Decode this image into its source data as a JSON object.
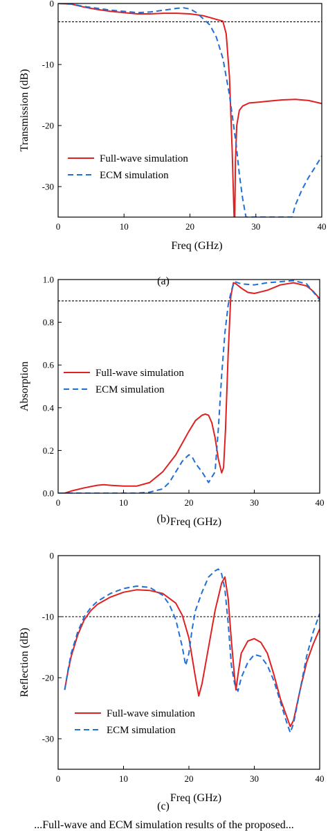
{
  "chart_data": [
    {
      "type": "line",
      "panel": "(a)",
      "xlabel": "Freq (GHz)",
      "ylabel": "Transmission (dB)",
      "xlim": [
        0,
        40
      ],
      "ylim": [
        -35,
        0
      ],
      "xticks": [
        "0",
        "10",
        "20",
        "30",
        "40"
      ],
      "yticks": [
        "0",
        "-10",
        "-20",
        "-30"
      ],
      "reference_line": -3,
      "legend": {
        "position": "bottom-left"
      },
      "series": [
        {
          "name": "Full-wave simulation",
          "color": "#e02020",
          "style": "solid",
          "x": [
            0,
            2,
            4,
            6,
            8,
            10,
            12,
            14,
            16,
            18,
            20,
            22,
            23,
            24,
            25,
            25.5,
            26,
            26.4,
            26.7,
            26.8,
            26.9,
            27.1,
            27.5,
            28,
            29,
            30,
            32,
            34,
            36,
            38,
            40
          ],
          "y": [
            0,
            -0.1,
            -0.6,
            -1.0,
            -1.3,
            -1.5,
            -1.7,
            -1.7,
            -1.6,
            -1.6,
            -1.7,
            -2.0,
            -2.3,
            -2.6,
            -2.9,
            -5,
            -12,
            -24,
            -35,
            -35,
            -26,
            -20,
            -17.5,
            -16.8,
            -16.3,
            -16.2,
            -16.0,
            -15.8,
            -15.7,
            -15.9,
            -16.4
          ]
        },
        {
          "name": "ECM simulation",
          "color": "#1f6fd6",
          "style": "dashed",
          "x": [
            0,
            2,
            4,
            6,
            8,
            10,
            12,
            14,
            16,
            18,
            19,
            20,
            21,
            22,
            23,
            24,
            25,
            26,
            26.5,
            27,
            27.5,
            28,
            28.5,
            35.5,
            36,
            37,
            38,
            39,
            40
          ],
          "y": [
            0,
            -0.1,
            -0.5,
            -0.8,
            -1.1,
            -1.3,
            -1.5,
            -1.4,
            -1.1,
            -0.8,
            -0.7,
            -0.9,
            -1.5,
            -2.5,
            -3.5,
            -5.5,
            -9,
            -15,
            -19,
            -23,
            -28,
            -32,
            -35,
            -35,
            -33,
            -30.5,
            -28.5,
            -26.8,
            -25
          ]
        }
      ]
    },
    {
      "type": "line",
      "panel": "(b)",
      "xlabel": "Freq (GHz)",
      "ylabel": "Absorption",
      "xlim": [
        0,
        40
      ],
      "ylim": [
        0,
        1.0
      ],
      "xticks": [
        "0",
        "10",
        "20",
        "30",
        "40"
      ],
      "yticks": [
        "0.0",
        "0.2",
        "0.4",
        "0.6",
        "0.8",
        "1.0"
      ],
      "reference_line": 0.9,
      "legend": {
        "position": "middle-left"
      },
      "series": [
        {
          "name": "Full-wave simulation",
          "color": "#e02020",
          "style": "solid",
          "x": [
            0,
            1,
            2,
            4,
            6,
            7,
            8,
            10,
            12,
            14,
            16,
            18,
            20,
            21,
            22,
            22.5,
            23,
            23.5,
            24,
            24.5,
            25,
            25.3,
            25.6,
            26,
            26.4,
            26.8,
            27.2,
            28,
            29,
            30,
            32,
            34,
            36,
            38,
            39,
            40
          ],
          "y": [
            0,
            0,
            0.01,
            0.025,
            0.037,
            0.04,
            0.037,
            0.033,
            0.033,
            0.05,
            0.1,
            0.18,
            0.29,
            0.34,
            0.365,
            0.37,
            0.365,
            0.33,
            0.26,
            0.16,
            0.095,
            0.12,
            0.3,
            0.65,
            0.92,
            0.985,
            0.98,
            0.96,
            0.94,
            0.935,
            0.95,
            0.975,
            0.985,
            0.97,
            0.945,
            0.91
          ]
        },
        {
          "name": "ECM simulation",
          "color": "#1f6fd6",
          "style": "dashed",
          "x": [
            0,
            4,
            8,
            10,
            12,
            14,
            16,
            17,
            18,
            19,
            20,
            20.5,
            21,
            22,
            23,
            24,
            24.5,
            25,
            25.5,
            26,
            26.5,
            27,
            28,
            30,
            32,
            34,
            36,
            38,
            40
          ],
          "y": [
            0,
            0,
            0,
            0,
            0,
            0.005,
            0.02,
            0.05,
            0.1,
            0.15,
            0.18,
            0.17,
            0.14,
            0.1,
            0.05,
            0.1,
            0.3,
            0.55,
            0.75,
            0.88,
            0.95,
            0.99,
            0.98,
            0.975,
            0.985,
            0.99,
            0.995,
            0.98,
            0.905
          ]
        }
      ]
    },
    {
      "type": "line",
      "panel": "(c)",
      "xlabel": "Freq (GHz)",
      "ylabel": "Reflection (dB)",
      "xlim": [
        0,
        40
      ],
      "ylim": [
        -35,
        0
      ],
      "xticks": [
        "0",
        "10",
        "20",
        "30",
        "40"
      ],
      "yticks": [
        "0",
        "-10",
        "-20",
        "-30"
      ],
      "reference_line": -10,
      "legend": {
        "position": "bottom-left"
      },
      "series": [
        {
          "name": "Full-wave simulation",
          "color": "#e02020",
          "style": "solid",
          "x": [
            1,
            1.5,
            2,
            3,
            4,
            5,
            6,
            8,
            10,
            12,
            14,
            16,
            18,
            19,
            20,
            21,
            21.5,
            22,
            23,
            24,
            25,
            25.5,
            26,
            26.5,
            27,
            27.2,
            27.5,
            28,
            29,
            30,
            31,
            32,
            33,
            34,
            35,
            35.5,
            36,
            37,
            38,
            39,
            40
          ],
          "y": [
            -22,
            -19,
            -16.5,
            -13,
            -10.5,
            -9,
            -8,
            -6.8,
            -6,
            -5.6,
            -5.7,
            -6.2,
            -7.8,
            -9.8,
            -13.5,
            -20,
            -23,
            -21,
            -15,
            -9,
            -4.5,
            -3.5,
            -7,
            -14,
            -20,
            -22,
            -19.5,
            -16,
            -14,
            -13.6,
            -14.2,
            -16,
            -19.5,
            -23.5,
            -26.5,
            -28,
            -27,
            -22,
            -17.5,
            -14.5,
            -12
          ]
        },
        {
          "name": "ECM simulation",
          "color": "#1f6fd6",
          "style": "dashed",
          "x": [
            1,
            1.5,
            2,
            3,
            4,
            5,
            6,
            8,
            10,
            12,
            14,
            16,
            17,
            18,
            19,
            19.5,
            20,
            20.5,
            21,
            22,
            23,
            24,
            24.5,
            25,
            25.5,
            26,
            26.5,
            27,
            27.5,
            28,
            29,
            30,
            31,
            32,
            33,
            34,
            35,
            35.5,
            36,
            37,
            38,
            39,
            40
          ],
          "y": [
            -22,
            -18.8,
            -16,
            -12.5,
            -10,
            -8.5,
            -7.5,
            -6.2,
            -5.4,
            -5,
            -5.2,
            -6.5,
            -8,
            -10.5,
            -15,
            -18,
            -16,
            -12,
            -9,
            -6,
            -3.5,
            -2.5,
            -2.2,
            -3,
            -5.5,
            -11,
            -18,
            -21,
            -22.2,
            -20,
            -17.5,
            -16.2,
            -16.5,
            -18,
            -20.5,
            -24,
            -27.5,
            -29,
            -27.5,
            -22,
            -16.5,
            -12.5,
            -9.5
          ]
        }
      ]
    }
  ],
  "captions": [
    "(a)",
    "(b)",
    "(c)"
  ],
  "footer_text": "...Full-wave and ECM simulation results of the proposed..."
}
